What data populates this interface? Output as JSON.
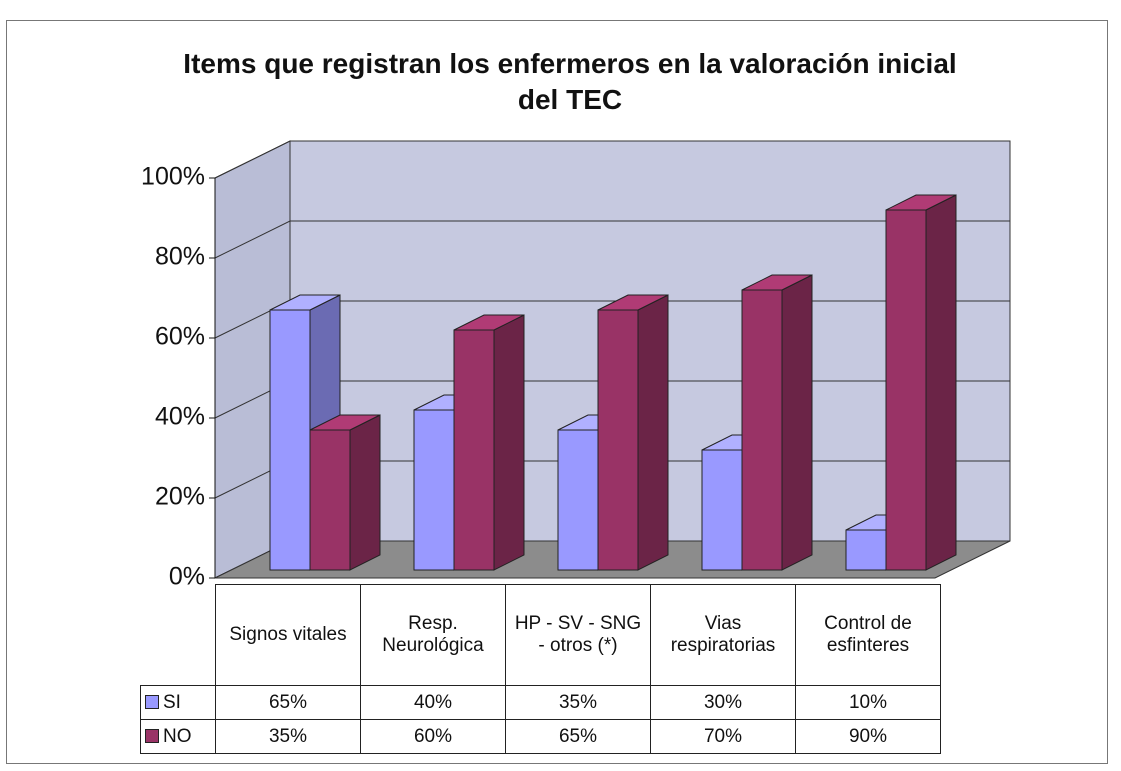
{
  "chart_data": {
    "type": "bar3d",
    "title": "Items que registran los enfermeros en la valoración inicial del TEC",
    "categories": [
      "Signos vitales",
      "Resp. Neurológica",
      "HP - SV - SNG - otros (*)",
      "Vias respiratorias",
      "Control de esfinteres"
    ],
    "series": [
      {
        "name": "SI",
        "color": "#9999ff",
        "values": [
          65,
          40,
          35,
          30,
          10
        ],
        "value_labels": [
          "65%",
          "40%",
          "35%",
          "30%",
          "10%"
        ]
      },
      {
        "name": "NO",
        "color": "#993366",
        "values": [
          35,
          60,
          65,
          70,
          90
        ],
        "value_labels": [
          "35%",
          "60%",
          "65%",
          "70%",
          "90%"
        ]
      }
    ],
    "ylim": [
      0,
      100
    ],
    "yticks": [
      {
        "value": 0,
        "label": "0%"
      },
      {
        "value": 20,
        "label": "20%"
      },
      {
        "value": 40,
        "label": "40%"
      },
      {
        "value": 60,
        "label": "60%"
      },
      {
        "value": 80,
        "label": "80%"
      },
      {
        "value": 100,
        "label": "100%"
      }
    ],
    "grid": true
  }
}
